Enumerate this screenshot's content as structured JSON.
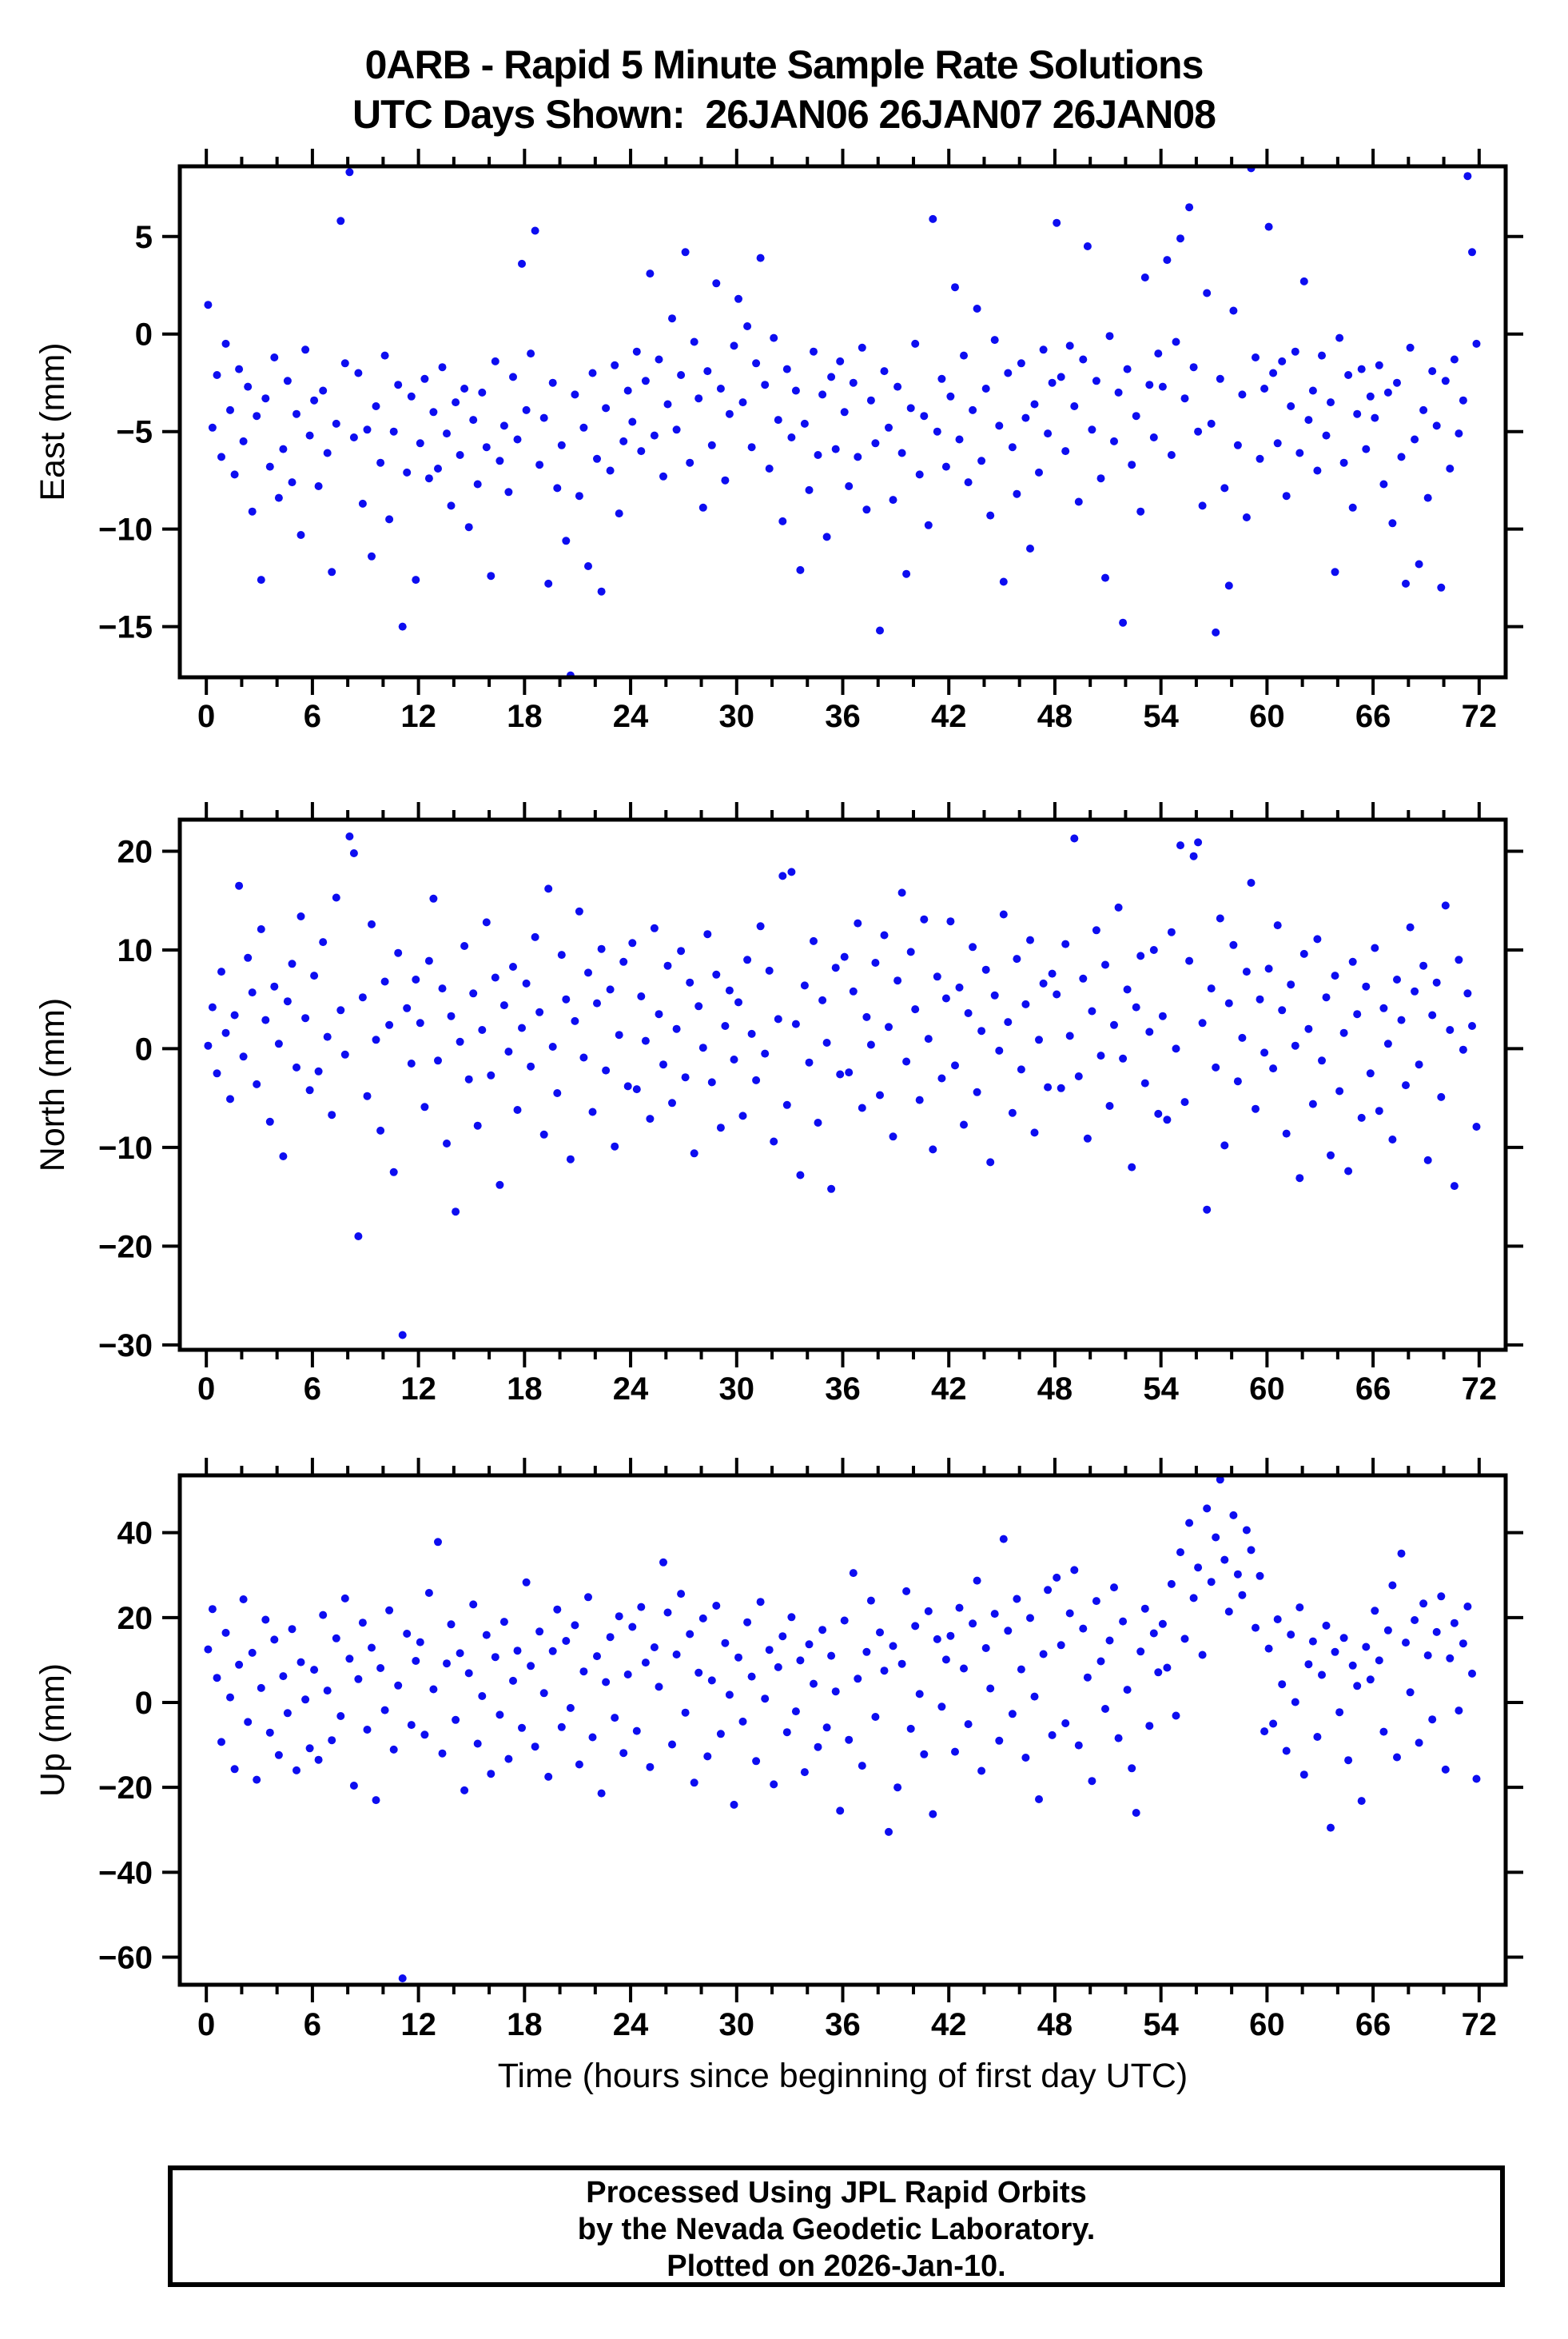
{
  "title": {
    "line1": "0ARB - Rapid 5 Minute Sample Rate Solutions",
    "line2": "UTC Days Shown:  26JAN06 26JAN07 26JAN08"
  },
  "footer": {
    "line1": "Processed Using JPL Rapid Orbits",
    "line2": "by the Nevada Geodetic Laboratory.",
    "line3": "Plotted on 2026-Jan-10."
  },
  "colors": {
    "dot": "#0d0df0",
    "frame": "#000000",
    "background": "#ffffff"
  },
  "x_axis": {
    "label": "Time (hours since beginning of first day UTC)",
    "lim": [
      -1.5,
      73.5
    ],
    "major_ticks": [
      0,
      6,
      12,
      18,
      24,
      30,
      36,
      42,
      48,
      54,
      60,
      66,
      72
    ],
    "minor_step": 2
  },
  "chart_data": [
    {
      "type": "scatter",
      "name": "east",
      "ylabel": "East (mm)",
      "ylim": [
        -17.6,
        8.6
      ],
      "yticks": [
        5,
        0,
        -5,
        -10,
        -15
      ],
      "x_start": 0.1,
      "x_step": 0.25,
      "y_values": [
        1.5,
        -4.8,
        -2.1,
        -6.3,
        -0.5,
        -3.9,
        -7.2,
        -1.8,
        -5.5,
        -2.7,
        -9.1,
        -4.2,
        -12.6,
        -3.3,
        -6.8,
        -1.2,
        -8.4,
        -5.9,
        -2.4,
        -7.6,
        -4.1,
        -10.3,
        -0.8,
        -5.2,
        -3.4,
        -7.8,
        -2.9,
        -6.1,
        -12.2,
        -4.6,
        5.8,
        -1.5,
        8.3,
        -5.3,
        -2.0,
        -8.7,
        -4.9,
        -11.4,
        -3.7,
        -6.6,
        -1.1,
        -9.5,
        -5.0,
        -2.6,
        -15.0,
        -7.1,
        -3.2,
        -12.6,
        -5.6,
        -2.3,
        -7.4,
        -4.0,
        -6.9,
        -1.7,
        -5.1,
        -8.8,
        -3.5,
        -6.2,
        -2.8,
        -9.9,
        -4.4,
        -7.7,
        -3.0,
        -5.8,
        -12.4,
        -1.4,
        -6.5,
        -4.7,
        -8.1,
        -2.2,
        -5.4,
        3.6,
        -3.9,
        -1.0,
        5.3,
        -6.7,
        -4.3,
        -12.8,
        -2.5,
        -7.9,
        -5.7,
        -10.6,
        -17.5,
        -3.1,
        -8.3,
        -4.8,
        -11.9,
        -2.0,
        -6.4,
        -13.2,
        -3.8,
        -7.0,
        -1.6,
        -9.2,
        -5.5,
        -2.9,
        -4.5,
        -0.9,
        -6.0,
        -2.4,
        3.1,
        -5.2,
        -1.3,
        -7.3,
        -3.6,
        0.8,
        -4.9,
        -2.1,
        4.2,
        -6.6,
        -0.4,
        -3.3,
        -8.9,
        -1.9,
        -5.7,
        2.6,
        -2.8,
        -7.5,
        -4.1,
        -0.6,
        1.8,
        -3.5,
        0.4,
        -5.8,
        -1.5,
        3.9,
        -2.6,
        -6.9,
        -0.2,
        -4.4,
        -9.6,
        -1.8,
        -5.3,
        -2.9,
        -12.1,
        -4.6,
        -8.0,
        -0.9,
        -6.2,
        -3.1,
        -10.4,
        -2.2,
        -5.9,
        -1.4,
        -4.0,
        -7.8,
        -2.5,
        -6.3,
        -0.7,
        -9.0,
        -3.4,
        -5.6,
        -15.2,
        -1.9,
        -4.8,
        -8.5,
        -2.7,
        -6.1,
        -12.3,
        -3.8,
        -0.5,
        -7.2,
        -4.2,
        -9.8,
        5.9,
        -5.0,
        -2.3,
        -6.8,
        -3.2,
        2.4,
        -5.4,
        -1.1,
        -7.6,
        -3.9,
        1.3,
        -6.5,
        -2.8,
        -9.3,
        -0.3,
        -4.7,
        -12.7,
        -2.0,
        -5.8,
        -8.2,
        -1.5,
        -4.3,
        -11.0,
        -3.6,
        -7.1,
        -0.8,
        -5.1,
        -2.5,
        5.7,
        -2.2,
        -6.0,
        -0.6,
        -3.7,
        -8.6,
        -1.3,
        4.5,
        -4.9,
        -2.4,
        -7.4,
        -12.5,
        -0.1,
        -5.5,
        -3.0,
        -14.8,
        -1.8,
        -6.7,
        -4.2,
        -9.1,
        2.9,
        -2.6,
        -5.3,
        -1.0,
        -2.7,
        3.8,
        -6.2,
        -0.4,
        4.9,
        -3.3,
        6.5,
        -1.7,
        -5.0,
        -8.8,
        2.1,
        -4.6,
        -15.3,
        -2.3,
        -7.9,
        -12.9,
        1.2,
        -5.7,
        -3.1,
        -9.4,
        8.5,
        -1.2,
        -6.4,
        -2.8,
        5.5,
        -2.0,
        -5.6,
        -1.4,
        -8.3,
        -3.7,
        -0.9,
        -6.1,
        2.7,
        -4.4,
        -2.9,
        -7.0,
        -1.1,
        -5.2,
        -3.5,
        -12.2,
        -0.2,
        -6.6,
        -2.1,
        -8.9,
        -4.1,
        -1.8,
        -5.9,
        -3.2,
        -4.3,
        -1.6,
        -7.7,
        -3.0,
        -9.7,
        -2.5,
        -6.3,
        -12.8,
        -0.7,
        -5.4,
        -11.8,
        -3.9,
        -8.4,
        -1.9,
        -4.7,
        -13.0,
        -2.4,
        -6.9,
        -1.3,
        -5.1,
        -3.4,
        8.1,
        4.2,
        -0.5
      ]
    },
    {
      "type": "scatter",
      "name": "north",
      "ylabel": "North (mm)",
      "ylim": [
        -30.5,
        23.2
      ],
      "yticks": [
        20,
        10,
        0,
        -10,
        -20,
        -30
      ],
      "x_start": 0.1,
      "x_step": 0.25,
      "y_values": [
        0.3,
        4.2,
        -2.5,
        7.8,
        1.6,
        -5.1,
        3.4,
        16.5,
        -0.8,
        9.2,
        5.7,
        -3.6,
        12.1,
        2.9,
        -7.4,
        6.3,
        0.5,
        -10.9,
        4.8,
        8.6,
        -1.9,
        13.4,
        3.1,
        -4.2,
        7.4,
        -2.3,
        10.8,
        1.2,
        -6.7,
        15.3,
        3.9,
        -0.6,
        21.5,
        19.8,
        -19.0,
        5.2,
        -4.8,
        12.6,
        0.9,
        -8.3,
        6.8,
        2.4,
        -12.5,
        9.7,
        -29.0,
        4.1,
        -1.5,
        7.0,
        2.6,
        -5.9,
        8.9,
        15.2,
        -1.2,
        6.1,
        -9.6,
        3.3,
        -16.5,
        0.7,
        10.4,
        -3.1,
        5.6,
        -7.8,
        1.9,
        12.8,
        -2.7,
        7.2,
        -13.8,
        4.4,
        -0.3,
        8.3,
        -6.2,
        2.1,
        6.6,
        -1.8,
        11.3,
        3.7,
        -8.7,
        16.2,
        0.2,
        -4.5,
        9.5,
        5.0,
        -11.2,
        2.8,
        13.9,
        -0.9,
        7.7,
        -6.4,
        4.6,
        10.1,
        -2.2,
        6.0,
        -9.9,
        1.4,
        8.8,
        -3.8,
        10.7,
        -4.1,
        5.3,
        0.8,
        -7.1,
        12.2,
        3.5,
        -1.6,
        8.4,
        -5.5,
        2.0,
        9.9,
        -2.9,
        6.7,
        -10.6,
        4.3,
        0.1,
        11.6,
        -3.4,
        7.5,
        -8.0,
        2.3,
        5.9,
        -1.1,
        4.7,
        -6.8,
        9.0,
        1.5,
        -3.2,
        12.4,
        -0.5,
        7.9,
        -9.4,
        3.0,
        17.5,
        -5.7,
        17.9,
        2.5,
        -12.8,
        6.4,
        -1.4,
        10.9,
        -7.5,
        4.9,
        0.6,
        -14.2,
        8.2,
        -2.6,
        9.3,
        -2.4,
        5.8,
        12.7,
        -6.0,
        3.2,
        0.4,
        8.7,
        -4.7,
        11.5,
        2.2,
        -8.9,
        6.9,
        15.8,
        -1.3,
        9.8,
        4.0,
        -5.2,
        13.1,
        1.0,
        -10.2,
        7.3,
        -3.0,
        5.1,
        12.9,
        -1.7,
        6.2,
        -7.7,
        3.6,
        10.3,
        -4.4,
        1.8,
        8.0,
        -11.5,
        5.4,
        -0.2,
        13.6,
        2.7,
        -6.5,
        9.1,
        -2.1,
        4.5,
        11.0,
        -8.5,
        0.9,
        6.6,
        -3.9,
        7.6,
        5.5,
        -4.0,
        10.6,
        1.3,
        21.3,
        -2.8,
        7.1,
        -9.1,
        3.8,
        12.0,
        -0.7,
        8.5,
        -5.8,
        2.4,
        14.3,
        -1.0,
        6.0,
        -12.0,
        4.2,
        9.4,
        -3.5,
        1.7,
        10.0,
        -6.6,
        3.3,
        -7.2,
        11.8,
        0.0,
        20.6,
        -5.4,
        8.9,
        19.5,
        20.9,
        2.6,
        -16.3,
        6.1,
        -1.9,
        13.2,
        -9.8,
        4.6,
        10.5,
        -3.3,
        1.1,
        7.8,
        16.8,
        -6.1,
        5.0,
        -0.4,
        8.1,
        -2.0,
        12.5,
        3.9,
        -8.6,
        6.5,
        0.3,
        -13.1,
        9.6,
        2.0,
        -5.6,
        11.1,
        -1.2,
        5.2,
        -10.8,
        7.4,
        -4.3,
        1.6,
        -12.4,
        8.8,
        3.5,
        -7.0,
        6.3,
        -2.5,
        10.2,
        -6.3,
        4.1,
        0.5,
        -9.2,
        7.0,
        2.9,
        -3.7,
        12.3,
        5.8,
        -1.6,
        8.4,
        -11.3,
        3.4,
        6.7,
        -4.9,
        14.5,
        1.9,
        -13.9,
        9.0,
        -0.1,
        5.6,
        2.3,
        -7.9
      ]
    },
    {
      "type": "scatter",
      "name": "up",
      "ylabel": "Up (mm)",
      "ylim": [
        -66.5,
        53.5
      ],
      "yticks": [
        40,
        20,
        0,
        -20,
        -40,
        -60
      ],
      "x_start": 0.1,
      "x_step": 0.25,
      "y_values": [
        12.5,
        22.0,
        5.8,
        -9.3,
        16.4,
        1.2,
        -15.7,
        8.9,
        24.3,
        -4.6,
        11.7,
        -18.2,
        3.4,
        19.5,
        -7.1,
        14.8,
        -12.4,
        6.2,
        -2.5,
        17.3,
        -16.0,
        9.5,
        0.7,
        -10.8,
        7.7,
        -13.5,
        20.6,
        2.8,
        -8.9,
        15.1,
        -3.2,
        24.5,
        10.3,
        -19.6,
        5.5,
        18.8,
        -6.4,
        12.9,
        -23.0,
        8.1,
        -1.8,
        21.7,
        -11.1,
        4.0,
        -65.0,
        16.2,
        -5.3,
        9.8,
        14.2,
        -7.6,
        25.8,
        3.1,
        37.8,
        -12.0,
        9.2,
        18.4,
        -4.1,
        11.6,
        -20.7,
        6.9,
        23.1,
        -9.7,
        1.5,
        15.9,
        -16.8,
        10.7,
        -2.9,
        19.0,
        -13.3,
        5.1,
        12.2,
        -6.0,
        28.3,
        8.6,
        -10.4,
        16.7,
        2.2,
        -17.5,
        12.1,
        21.9,
        -5.8,
        14.5,
        -1.3,
        18.2,
        -14.6,
        7.3,
        24.8,
        -8.2,
        10.9,
        -21.4,
        4.8,
        15.4,
        -3.6,
        20.3,
        -11.9,
        6.6,
        17.8,
        -6.7,
        22.5,
        9.4,
        -15.2,
        13.0,
        3.7,
        33.0,
        21.2,
        -9.9,
        11.3,
        25.6,
        -2.4,
        16.1,
        -18.9,
        7.0,
        19.8,
        -12.7,
        5.2,
        22.8,
        -7.4,
        14.0,
        1.8,
        -24.1,
        10.6,
        -4.5,
        18.9,
        6.1,
        -13.8,
        23.7,
        0.9,
        12.4,
        -19.3,
        8.3,
        15.6,
        -7.0,
        20.1,
        -2.1,
        9.9,
        -16.4,
        13.7,
        4.4,
        -10.5,
        17.1,
        -5.9,
        11.0,
        2.6,
        -25.5,
        19.3,
        -8.8,
        30.5,
        5.6,
        -14.9,
        11.9,
        24.0,
        -3.4,
        16.5,
        7.5,
        -30.5,
        13.3,
        -20.0,
        9.1,
        26.2,
        -6.2,
        18.0,
        2.0,
        -12.2,
        21.5,
        -26.3,
        14.9,
        -1.0,
        10.1,
        15.7,
        -11.6,
        22.3,
        8.0,
        -5.1,
        18.6,
        28.7,
        -16.1,
        12.8,
        3.3,
        20.9,
        -9.0,
        38.5,
        16.9,
        -2.7,
        24.4,
        7.8,
        -13.0,
        19.9,
        1.4,
        -22.8,
        11.4,
        26.5,
        -7.7,
        29.4,
        13.5,
        -4.9,
        21.0,
        31.2,
        -10.1,
        17.4,
        5.9,
        -18.5,
        23.9,
        9.7,
        -1.5,
        14.6,
        27.1,
        -8.4,
        19.1,
        3.0,
        -15.5,
        -26.0,
        12.0,
        22.1,
        -5.5,
        16.3,
        7.1,
        18.5,
        8.2,
        27.9,
        -3.1,
        35.4,
        15.0,
        42.3,
        24.6,
        31.8,
        11.2,
        45.7,
        28.4,
        38.9,
        52.5,
        33.6,
        21.4,
        44.1,
        30.2,
        25.3,
        40.6,
        35.9,
        17.6,
        29.8,
        -6.8,
        12.7,
        -5.0,
        19.6,
        4.3,
        -11.4,
        16.0,
        0.1,
        22.4,
        -17.0,
        9.0,
        14.4,
        -8.1,
        6.5,
        18.1,
        -29.5,
        11.9,
        -2.3,
        15.2,
        -13.6,
        8.7,
        3.9,
        -23.2,
        13.1,
        5.4,
        21.6,
        9.9,
        -6.9,
        17.0,
        27.6,
        -12.9,
        35.1,
        14.1,
        2.4,
        19.4,
        -9.5,
        23.3,
        11.1,
        -4.0,
        16.6,
        25.0,
        -15.8,
        10.4,
        18.7,
        -1.9,
        13.9,
        22.6,
        6.8,
        -18.0
      ]
    }
  ]
}
